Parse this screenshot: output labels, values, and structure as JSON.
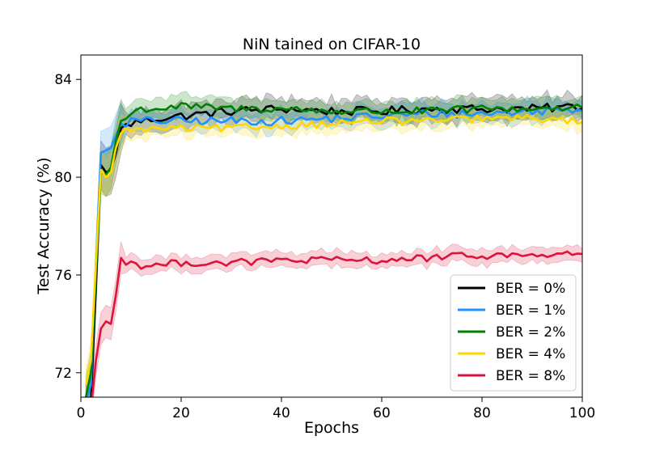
{
  "chart_data": {
    "type": "line",
    "title": "NiN tained on CIFAR-10",
    "xlabel": "Epochs",
    "ylabel": "Test Accuracy (%)",
    "xlim": [
      0,
      100
    ],
    "ylim": [
      71,
      85
    ],
    "xticks": [
      0,
      20,
      40,
      60,
      80,
      100
    ],
    "yticks": [
      72,
      76,
      80,
      84
    ],
    "grid": false,
    "legend_position": "lower-right",
    "series": [
      {
        "name": "BER = 0%",
        "color": "#000000",
        "anchors": [
          [
            1,
            70.5
          ],
          [
            2,
            70.8
          ],
          [
            3,
            75.5
          ],
          [
            4,
            80.5
          ],
          [
            5,
            80.2
          ],
          [
            6,
            80.3
          ],
          [
            7,
            81.0
          ],
          [
            8,
            82.0
          ],
          [
            9,
            82.1
          ],
          [
            10,
            82.2
          ],
          [
            12,
            82.3
          ],
          [
            15,
            82.4
          ],
          [
            20,
            82.5
          ],
          [
            30,
            82.7
          ],
          [
            40,
            82.8
          ],
          [
            50,
            82.7
          ],
          [
            60,
            82.7
          ],
          [
            70,
            82.8
          ],
          [
            80,
            82.8
          ],
          [
            90,
            82.8
          ],
          [
            100,
            82.9
          ]
        ],
        "noise": 0.18,
        "band": 0.45
      },
      {
        "name": "BER = 1%",
        "color": "#1E90FF",
        "anchors": [
          [
            1,
            70.8
          ],
          [
            2,
            71.5
          ],
          [
            3,
            76.5
          ],
          [
            4,
            81.0
          ],
          [
            5,
            81.1
          ],
          [
            6,
            81.2
          ],
          [
            7,
            81.7
          ],
          [
            8,
            82.2
          ],
          [
            9,
            82.2
          ],
          [
            10,
            82.3
          ],
          [
            12,
            82.3
          ],
          [
            15,
            82.3
          ],
          [
            20,
            82.3
          ],
          [
            30,
            82.3
          ],
          [
            40,
            82.3
          ],
          [
            50,
            82.4
          ],
          [
            60,
            82.5
          ],
          [
            70,
            82.6
          ],
          [
            80,
            82.6
          ],
          [
            90,
            82.7
          ],
          [
            100,
            82.8
          ]
        ],
        "noise": 0.18,
        "band": 0.4
      },
      {
        "name": "BER = 2%",
        "color": "#008000",
        "anchors": [
          [
            1,
            71.0
          ],
          [
            2,
            72.0
          ],
          [
            3,
            76.0
          ],
          [
            4,
            80.2
          ],
          [
            5,
            80.1
          ],
          [
            6,
            80.4
          ],
          [
            7,
            81.5
          ],
          [
            8,
            82.3
          ],
          [
            9,
            82.4
          ],
          [
            10,
            82.6
          ],
          [
            12,
            82.8
          ],
          [
            15,
            82.8
          ],
          [
            20,
            82.9
          ],
          [
            30,
            82.8
          ],
          [
            40,
            82.8
          ],
          [
            50,
            82.7
          ],
          [
            60,
            82.7
          ],
          [
            70,
            82.7
          ],
          [
            80,
            82.8
          ],
          [
            90,
            82.8
          ],
          [
            100,
            82.9
          ]
        ],
        "noise": 0.16,
        "band": 0.4
      },
      {
        "name": "BER = 4%",
        "color": "#FFD700",
        "anchors": [
          [
            1,
            71.5
          ],
          [
            2,
            72.5
          ],
          [
            3,
            76.5
          ],
          [
            4,
            80.3
          ],
          [
            5,
            80.0
          ],
          [
            6,
            80.2
          ],
          [
            7,
            81.2
          ],
          [
            8,
            81.8
          ],
          [
            9,
            81.9
          ],
          [
            10,
            82.0
          ],
          [
            12,
            81.9
          ],
          [
            15,
            82.0
          ],
          [
            20,
            82.0
          ],
          [
            30,
            82.0
          ],
          [
            40,
            82.1
          ],
          [
            50,
            82.2
          ],
          [
            60,
            82.3
          ],
          [
            70,
            82.3
          ],
          [
            80,
            82.4
          ],
          [
            90,
            82.4
          ],
          [
            100,
            82.3
          ]
        ],
        "noise": 0.15,
        "band": 0.35
      },
      {
        "name": "BER = 8%",
        "color": "#DC143C",
        "anchors": [
          [
            1,
            69.5
          ],
          [
            2,
            70.5
          ],
          [
            3,
            72.5
          ],
          [
            4,
            73.8
          ],
          [
            5,
            74.1
          ],
          [
            6,
            74.0
          ],
          [
            7,
            75.2
          ],
          [
            8,
            76.7
          ],
          [
            9,
            76.5
          ],
          [
            10,
            76.5
          ],
          [
            12,
            76.4
          ],
          [
            15,
            76.4
          ],
          [
            20,
            76.5
          ],
          [
            30,
            76.5
          ],
          [
            40,
            76.6
          ],
          [
            50,
            76.6
          ],
          [
            60,
            76.6
          ],
          [
            70,
            76.7
          ],
          [
            80,
            76.8
          ],
          [
            90,
            76.8
          ],
          [
            100,
            76.9
          ]
        ],
        "noise": 0.15,
        "band": 0.3
      }
    ]
  }
}
